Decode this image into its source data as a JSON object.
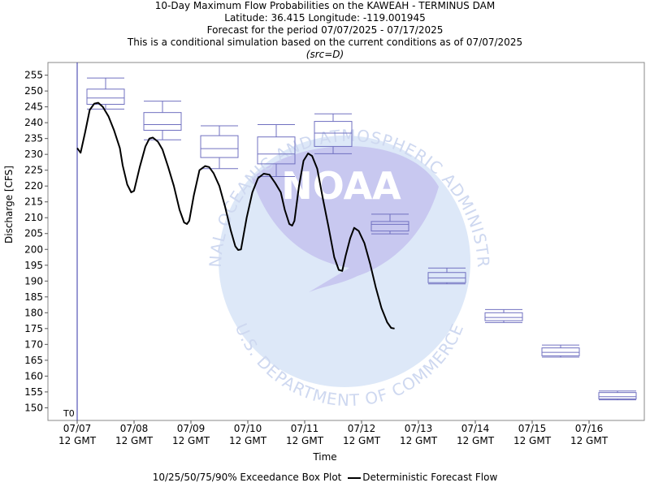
{
  "title": {
    "line1": "10-Day Maximum Flow Probabilities on the KAWEAH - TERMINUS DAM",
    "line2": "Latitude: 36.415 Longitude: -119.001945",
    "line3": "Forecast for the period 07/07/2025 - 07/17/2025",
    "line4": "This is a conditional simulation based on the current conditions as of 07/07/2025",
    "src": "(src=D)"
  },
  "watermark": {
    "top_text": "NATIONAL OCEANIC AND ATMOSPHERIC ADMINISTRATION",
    "bottom_text": "U.S. DEPARTMENT OF COMMERCE",
    "logo_text": "NOAA"
  },
  "legend": {
    "box_label": "10/25/50/75/90% Exceedance Box Plot",
    "line_label": "Deterministic Forecast Flow"
  },
  "colors": {
    "box": "#7070c0",
    "line": "#000000",
    "t0_line": "#3333aa",
    "watermark_light": "#dde8f8",
    "watermark_dark": "#c8c8f0"
  },
  "chart_data": {
    "type": "box+line",
    "xlabel": "Time",
    "ylabel": "Discharge [CFS]",
    "ylim": [
      146,
      259
    ],
    "yticks": [
      150,
      155,
      160,
      165,
      170,
      175,
      180,
      185,
      190,
      195,
      200,
      205,
      210,
      215,
      220,
      225,
      230,
      235,
      240,
      245,
      250,
      255
    ],
    "xlim_days": [
      -0.5,
      9.9
    ],
    "t0_label": "T0",
    "x_ticks": [
      {
        "day": 0,
        "line1": "07/07",
        "line2": "12 GMT"
      },
      {
        "day": 1,
        "line1": "07/08",
        "line2": "12 GMT"
      },
      {
        "day": 2,
        "line1": "07/09",
        "line2": "12 GMT"
      },
      {
        "day": 3,
        "line1": "07/10",
        "line2": "12 GMT"
      },
      {
        "day": 4,
        "line1": "07/11",
        "line2": "12 GMT"
      },
      {
        "day": 5,
        "line1": "07/12",
        "line2": "12 GMT"
      },
      {
        "day": 6,
        "line1": "07/13",
        "line2": "12 GMT"
      },
      {
        "day": 7,
        "line1": "07/14",
        "line2": "12 GMT"
      },
      {
        "day": 8,
        "line1": "07/15",
        "line2": "12 GMT"
      },
      {
        "day": 9,
        "line1": "07/16",
        "line2": "12 GMT"
      }
    ],
    "boxes": [
      {
        "day": 0.5,
        "p10": 244.3,
        "p25": 245.8,
        "p50": 247.8,
        "p75": 250.6,
        "p90": 254.1
      },
      {
        "day": 1.5,
        "p10": 234.6,
        "p25": 237.6,
        "p50": 239.4,
        "p75": 243.2,
        "p90": 246.8
      },
      {
        "day": 2.5,
        "p10": 225.5,
        "p25": 229.0,
        "p50": 231.8,
        "p75": 235.9,
        "p90": 239.0
      },
      {
        "day": 3.5,
        "p10": 223.0,
        "p25": 227.0,
        "p50": 230.1,
        "p75": 235.5,
        "p90": 239.4
      },
      {
        "day": 4.5,
        "p10": 230.2,
        "p25": 232.5,
        "p50": 236.7,
        "p75": 240.4,
        "p90": 242.8
      },
      {
        "day": 5.5,
        "p10": 204.9,
        "p25": 205.8,
        "p50": 207.9,
        "p75": 208.8,
        "p90": 211.1
      },
      {
        "day": 6.5,
        "p10": 189.1,
        "p25": 189.5,
        "p50": 191.0,
        "p75": 192.7,
        "p90": 194.1
      },
      {
        "day": 7.5,
        "p10": 176.9,
        "p25": 177.5,
        "p50": 178.5,
        "p75": 180.0,
        "p90": 181.0
      },
      {
        "day": 8.5,
        "p10": 166.0,
        "p25": 166.4,
        "p50": 167.5,
        "p75": 168.9,
        "p90": 169.8
      },
      {
        "day": 9.5,
        "p10": 152.5,
        "p25": 152.8,
        "p50": 153.5,
        "p75": 154.8,
        "p90": 155.3
      }
    ],
    "flow": {
      "name": "Deterministic Forecast Flow",
      "points": [
        [
          0.0,
          232.0
        ],
        [
          0.06,
          230.5
        ],
        [
          0.14,
          237.0
        ],
        [
          0.22,
          244.0
        ],
        [
          0.3,
          246.0
        ],
        [
          0.37,
          246.3
        ],
        [
          0.45,
          245.0
        ],
        [
          0.55,
          242.0
        ],
        [
          0.65,
          237.5
        ],
        [
          0.75,
          232.0
        ],
        [
          0.8,
          226.5
        ],
        [
          0.88,
          220.5
        ],
        [
          0.95,
          218.0
        ],
        [
          1.0,
          218.5
        ],
        [
          1.1,
          226.0
        ],
        [
          1.2,
          232.5
        ],
        [
          1.27,
          235.0
        ],
        [
          1.33,
          235.3
        ],
        [
          1.42,
          234.0
        ],
        [
          1.5,
          231.5
        ],
        [
          1.6,
          226.0
        ],
        [
          1.7,
          220.0
        ],
        [
          1.8,
          212.5
        ],
        [
          1.88,
          208.5
        ],
        [
          1.93,
          208.0
        ],
        [
          1.97,
          209.0
        ],
        [
          2.05,
          217.0
        ],
        [
          2.15,
          225.0
        ],
        [
          2.25,
          226.3
        ],
        [
          2.32,
          226.0
        ],
        [
          2.4,
          224.0
        ],
        [
          2.5,
          220.0
        ],
        [
          2.6,
          213.5
        ],
        [
          2.7,
          206.0
        ],
        [
          2.78,
          201.0
        ],
        [
          2.83,
          199.8
        ],
        [
          2.88,
          200.0
        ],
        [
          2.98,
          210.0
        ],
        [
          3.08,
          218.0
        ],
        [
          3.18,
          222.5
        ],
        [
          3.28,
          223.9
        ],
        [
          3.38,
          223.6
        ],
        [
          3.48,
          221.0
        ],
        [
          3.58,
          218.0
        ],
        [
          3.65,
          212.5
        ],
        [
          3.73,
          208.0
        ],
        [
          3.78,
          207.5
        ],
        [
          3.82,
          209.0
        ],
        [
          3.9,
          220.0
        ],
        [
          3.98,
          228.0
        ],
        [
          4.06,
          230.3
        ],
        [
          4.13,
          229.5
        ],
        [
          4.22,
          225.5
        ],
        [
          4.32,
          216.0
        ],
        [
          4.42,
          207.0
        ],
        [
          4.52,
          197.5
        ],
        [
          4.6,
          193.5
        ],
        [
          4.66,
          193.2
        ],
        [
          4.72,
          198.0
        ],
        [
          4.8,
          203.5
        ],
        [
          4.87,
          206.8
        ],
        [
          4.95,
          205.8
        ],
        [
          5.05,
          202.0
        ],
        [
          5.15,
          195.5
        ],
        [
          5.25,
          188.0
        ],
        [
          5.35,
          181.5
        ],
        [
          5.45,
          177.0
        ],
        [
          5.52,
          175.2
        ],
        [
          5.58,
          175.0
        ]
      ]
    }
  }
}
